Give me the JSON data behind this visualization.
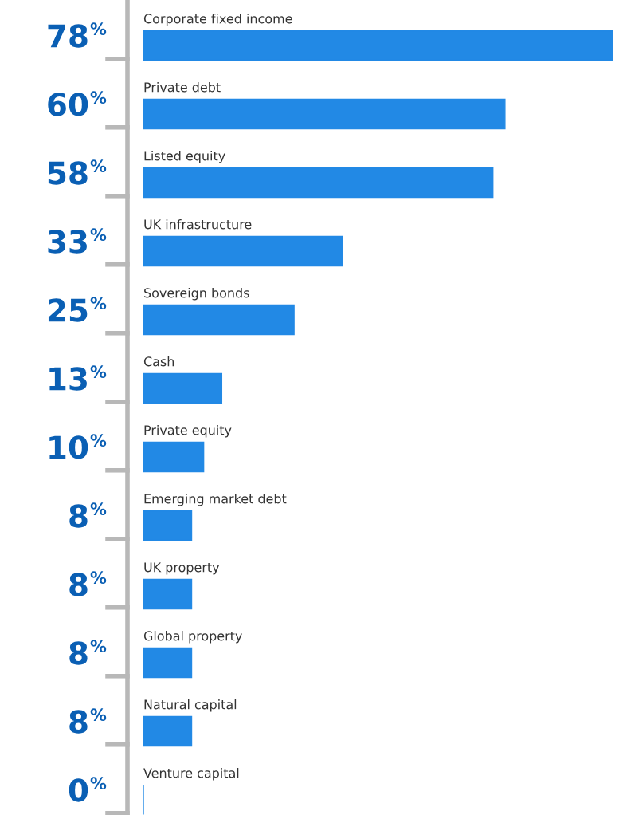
{
  "chart_data": {
    "type": "bar",
    "orientation": "horizontal",
    "categories": [
      "Corporate fixed income",
      "Private debt",
      "Listed equity",
      "UK infrastructure",
      "Sovereign bonds",
      "Cash",
      "Private equity",
      "Emerging market debt",
      "UK property",
      "Global property",
      "Natural capital",
      "Venture capital"
    ],
    "values": [
      78,
      60,
      58,
      33,
      25,
      13,
      10,
      8,
      8,
      8,
      8,
      0
    ],
    "value_labels": [
      "78%",
      "60%",
      "58%",
      "33%",
      "25%",
      "13%",
      "10%",
      "8%",
      "8%",
      "8%",
      "8%",
      "0%"
    ],
    "color": "#2289e5"
  }
}
